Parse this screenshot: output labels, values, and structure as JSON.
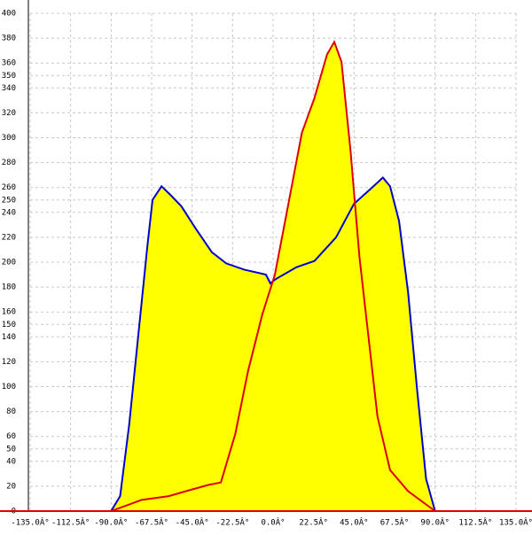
{
  "chart_data": {
    "type": "area",
    "fill_color": "#ffff00",
    "grid": true,
    "xlim": [
      -135,
      135
    ],
    "ylim": [
      0,
      400
    ],
    "xticks": [
      {
        "value": -135,
        "label": "-135.0Â°"
      },
      {
        "value": -112.5,
        "label": "-112.5Â°"
      },
      {
        "value": -90,
        "label": "-90.0Â°"
      },
      {
        "value": -67.5,
        "label": "-67.5Â°"
      },
      {
        "value": -45,
        "label": "-45.0Â°"
      },
      {
        "value": -22.5,
        "label": "-22.5Â°"
      },
      {
        "value": 0,
        "label": "0.0Â°"
      },
      {
        "value": 22.5,
        "label": "22.5Â°"
      },
      {
        "value": 45,
        "label": "45.0Â°"
      },
      {
        "value": 67.5,
        "label": "67.5Â°"
      },
      {
        "value": 90,
        "label": "90.0Â°"
      },
      {
        "value": 112.5,
        "label": "112.5Â°"
      },
      {
        "value": 135,
        "label": "135.0Â°"
      }
    ],
    "yticks": [
      0,
      20,
      40,
      50,
      60,
      80,
      100,
      120,
      140,
      150,
      160,
      180,
      200,
      220,
      240,
      250,
      260,
      280,
      300,
      320,
      340,
      350,
      360,
      380,
      400
    ],
    "series": [
      {
        "color": "#0000cc",
        "x": [
          -90,
          -85,
          -80,
          -75,
          -70,
          -67,
          -62,
          -57,
          -51,
          -43,
          -34,
          -26,
          -16,
          -4,
          -1.5,
          1,
          13,
          23,
          35,
          45,
          55,
          61,
          65,
          70,
          75,
          80,
          85,
          90
        ],
        "values": [
          0,
          12,
          69,
          140,
          211,
          250,
          261,
          254,
          245,
          227,
          208,
          199,
          194,
          190,
          183,
          186,
          196,
          201,
          220,
          247,
          260,
          268,
          261,
          233,
          176,
          98,
          26,
          0
        ]
      },
      {
        "color": "#dd0000",
        "x": [
          -90,
          -73,
          -58,
          -46,
          -36,
          -29,
          -21,
          -14,
          -6,
          1,
          8,
          16,
          23,
          30,
          34,
          38,
          43,
          48,
          53,
          58,
          65,
          75,
          90
        ],
        "values": [
          0,
          9,
          12,
          17,
          21,
          23,
          62,
          112,
          158,
          190,
          243,
          304,
          332,
          367,
          377,
          361,
          290,
          204,
          140,
          76,
          33,
          16,
          0
        ]
      }
    ]
  }
}
